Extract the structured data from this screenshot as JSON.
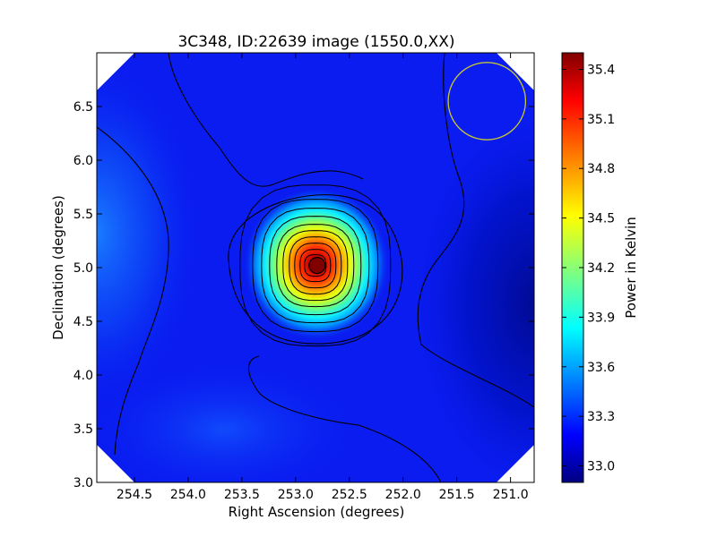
{
  "chart_data": {
    "type": "heatmap",
    "title": "3C348, ID:22639 image (1550.0,XX)",
    "xlabel": "Right Ascension (degrees)",
    "ylabel": "Declination (degrees)",
    "xlim": [
      254.85,
      250.78
    ],
    "ylim": [
      3.0,
      7.0
    ],
    "x_ticks": [
      254.5,
      254.0,
      253.5,
      253.0,
      252.5,
      252.0,
      251.5,
      251.0
    ],
    "x_tick_labels": [
      "254.5",
      "254.0",
      "253.5",
      "253.0",
      "252.5",
      "252.0",
      "251.5",
      "251.0"
    ],
    "y_ticks": [
      3.0,
      3.5,
      4.0,
      4.5,
      5.0,
      5.5,
      6.0,
      6.5
    ],
    "y_tick_labels": [
      "3.0",
      "3.5",
      "4.0",
      "4.5",
      "5.0",
      "5.5",
      "6.0",
      "6.5"
    ],
    "colorbar": {
      "label": "Power in Kelvin",
      "range": [
        32.9,
        35.5
      ],
      "ticks": [
        33.0,
        33.3,
        33.6,
        33.9,
        34.2,
        34.5,
        34.8,
        35.1,
        35.4
      ],
      "tick_labels": [
        "33.0",
        "33.3",
        "33.6",
        "33.9",
        "34.2",
        "34.5",
        "34.8",
        "35.1",
        "35.4"
      ],
      "colormap": "jet"
    },
    "source_peak": {
      "ra": 252.8,
      "dec": 5.02,
      "value": 35.45
    },
    "beam_circle": {
      "ra": 251.22,
      "dec": 6.55,
      "radius_deg": 0.36,
      "color": "#c8c832"
    },
    "colors": {
      "background_field": "#0a1cf0",
      "contour": "#000000"
    }
  }
}
